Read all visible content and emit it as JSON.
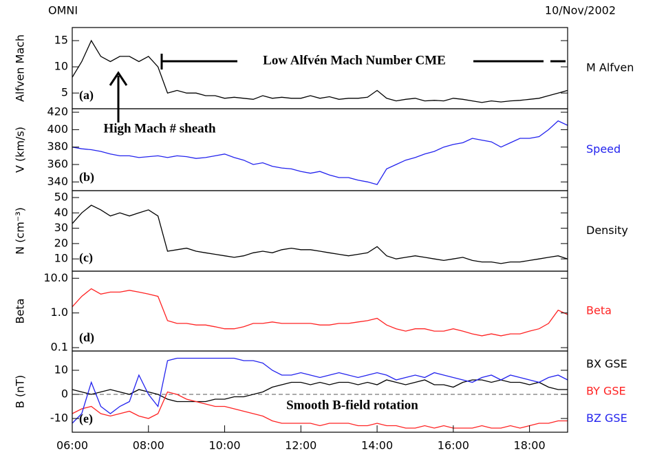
{
  "header": {
    "left": "OMNI",
    "right": "10/Nov/2002"
  },
  "chart_data": [
    {
      "type": "line",
      "panel_label": "(a)",
      "y_label": "Alfven Mach",
      "annotations": [
        "Low Alfvén Mach Number CME",
        "High Mach # sheath"
      ],
      "xlim": [
        6,
        19
      ],
      "ylim": [
        2,
        17.5
      ],
      "yticks": [
        5,
        10,
        15
      ],
      "x": [
        6,
        6.25,
        6.5,
        6.75,
        7,
        7.25,
        7.5,
        7.75,
        8,
        8.25,
        8.5,
        8.75,
        9,
        9.25,
        9.5,
        9.75,
        10,
        10.25,
        10.5,
        10.75,
        11,
        11.25,
        11.5,
        11.75,
        12,
        12.25,
        12.5,
        12.75,
        13,
        13.25,
        13.5,
        13.75,
        14,
        14.25,
        14.5,
        14.75,
        15,
        15.25,
        15.5,
        15.75,
        16,
        16.25,
        16.5,
        16.75,
        17,
        17.25,
        17.5,
        17.75,
        18,
        18.25,
        18.5,
        18.75,
        19
      ],
      "series": [
        {
          "name": "M Alfven",
          "color": "#000000",
          "values": [
            8,
            11,
            15,
            12,
            11,
            12,
            12,
            11,
            12,
            10,
            5,
            5.5,
            5,
            5,
            4.5,
            4.5,
            4,
            4.2,
            4,
            3.8,
            4.5,
            4,
            4.2,
            4,
            4,
            4.5,
            4,
            4.3,
            3.8,
            4,
            4,
            4.2,
            5.5,
            4,
            3.5,
            3.8,
            4,
            3.5,
            3.6,
            3.5,
            4,
            3.8,
            3.5,
            3.2,
            3.5,
            3.3,
            3.5,
            3.6,
            3.8,
            4,
            4.5,
            5,
            5.5
          ]
        }
      ]
    },
    {
      "type": "line",
      "panel_label": "(b)",
      "y_label": "V (km/s)",
      "xlim": [
        6,
        19
      ],
      "ylim": [
        330,
        424
      ],
      "yticks": [
        340,
        360,
        380,
        400,
        420
      ],
      "x": [
        6,
        6.25,
        6.5,
        6.75,
        7,
        7.25,
        7.5,
        7.75,
        8,
        8.25,
        8.5,
        8.75,
        9,
        9.25,
        9.5,
        9.75,
        10,
        10.25,
        10.5,
        10.75,
        11,
        11.25,
        11.5,
        11.75,
        12,
        12.25,
        12.5,
        12.75,
        13,
        13.25,
        13.5,
        13.75,
        14,
        14.25,
        14.5,
        14.75,
        15,
        15.25,
        15.5,
        15.75,
        16,
        16.25,
        16.5,
        16.75,
        17,
        17.25,
        17.5,
        17.75,
        18,
        18.25,
        18.5,
        18.75,
        19
      ],
      "series": [
        {
          "name": "Speed",
          "color": "#2222ee",
          "values": [
            380,
            378,
            377,
            375,
            372,
            370,
            370,
            368,
            369,
            370,
            368,
            370,
            369,
            367,
            368,
            370,
            372,
            368,
            365,
            360,
            362,
            358,
            356,
            355,
            352,
            350,
            352,
            348,
            345,
            345,
            342,
            340,
            337,
            355,
            360,
            365,
            368,
            372,
            375,
            380,
            383,
            385,
            390,
            388,
            386,
            380,
            385,
            390,
            390,
            392,
            400,
            410,
            405
          ]
        }
      ]
    },
    {
      "type": "line",
      "panel_label": "(c)",
      "y_label": "N (cm⁻³)",
      "xlim": [
        6,
        19
      ],
      "ylim": [
        2,
        54.5
      ],
      "yticks": [
        10,
        20,
        30,
        40,
        50
      ],
      "x": [
        6,
        6.25,
        6.5,
        6.75,
        7,
        7.25,
        7.5,
        7.75,
        8,
        8.25,
        8.5,
        8.75,
        9,
        9.25,
        9.5,
        9.75,
        10,
        10.25,
        10.5,
        10.75,
        11,
        11.25,
        11.5,
        11.75,
        12,
        12.25,
        12.5,
        12.75,
        13,
        13.25,
        13.5,
        13.75,
        14,
        14.25,
        14.5,
        14.75,
        15,
        15.25,
        15.5,
        15.75,
        16,
        16.25,
        16.5,
        16.75,
        17,
        17.25,
        17.5,
        17.75,
        18,
        18.25,
        18.5,
        18.75,
        19
      ],
      "series": [
        {
          "name": "Density",
          "color": "#000000",
          "values": [
            33,
            40,
            45,
            42,
            38,
            40,
            38,
            40,
            42,
            38,
            15,
            16,
            17,
            15,
            14,
            13,
            12,
            11,
            12,
            14,
            15,
            14,
            16,
            17,
            16,
            16,
            15,
            14,
            13,
            12,
            13,
            14,
            18,
            12,
            10,
            11,
            12,
            11,
            10,
            9,
            10,
            11,
            9,
            8,
            8,
            7,
            8,
            8,
            9,
            10,
            11,
            12,
            10
          ]
        }
      ]
    },
    {
      "type": "line",
      "panel_label": "(d)",
      "y_label": "Beta",
      "log_scale": true,
      "xlim": [
        6,
        19
      ],
      "ylim": [
        0.08,
        16
      ],
      "yticks": [
        {
          "value": 10,
          "label": "10.0"
        },
        {
          "value": 1,
          "label": "1.0"
        },
        0.1
      ],
      "x": [
        6,
        6.25,
        6.5,
        6.75,
        7,
        7.25,
        7.5,
        7.75,
        8,
        8.25,
        8.5,
        8.75,
        9,
        9.25,
        9.5,
        9.75,
        10,
        10.25,
        10.5,
        10.75,
        11,
        11.25,
        11.5,
        11.75,
        12,
        12.25,
        12.5,
        12.75,
        13,
        13.25,
        13.5,
        13.75,
        14,
        14.25,
        14.5,
        14.75,
        15,
        15.25,
        15.5,
        15.75,
        16,
        16.25,
        16.5,
        16.75,
        17,
        17.25,
        17.5,
        17.75,
        18,
        18.25,
        18.5,
        18.75,
        19
      ],
      "series": [
        {
          "name": "Beta",
          "color": "#ff2222",
          "values": [
            1.5,
            3,
            5,
            3.5,
            4,
            4,
            4.5,
            4,
            3.5,
            3,
            0.6,
            0.5,
            0.5,
            0.45,
            0.45,
            0.4,
            0.35,
            0.35,
            0.4,
            0.5,
            0.5,
            0.55,
            0.5,
            0.5,
            0.5,
            0.5,
            0.45,
            0.45,
            0.5,
            0.5,
            0.55,
            0.6,
            0.7,
            0.45,
            0.35,
            0.3,
            0.35,
            0.35,
            0.3,
            0.3,
            0.35,
            0.3,
            0.25,
            0.22,
            0.25,
            0.22,
            0.25,
            0.25,
            0.3,
            0.35,
            0.5,
            1.2,
            0.9
          ]
        }
      ]
    },
    {
      "type": "line",
      "panel_label": "(e)",
      "y_label": "B (nT)",
      "annotations": [
        "Smooth B-field rotation"
      ],
      "reference_line": 0,
      "xlim": [
        6,
        19
      ],
      "ylim": [
        -15.7,
        18
      ],
      "yticks": [
        -10,
        0,
        10
      ],
      "xticks": [
        {
          "value": 6,
          "label": "06:00"
        },
        {
          "value": 8,
          "label": "08:00"
        },
        {
          "value": 10,
          "label": "10:00"
        },
        {
          "value": 12,
          "label": "12:00"
        },
        {
          "value": 14,
          "label": "14:00"
        },
        {
          "value": 16,
          "label": "16:00"
        },
        {
          "value": 18,
          "label": "18:00"
        }
      ],
      "x": [
        6,
        6.25,
        6.5,
        6.75,
        7,
        7.25,
        7.5,
        7.75,
        8,
        8.25,
        8.5,
        8.75,
        9,
        9.25,
        9.5,
        9.75,
        10,
        10.25,
        10.5,
        10.75,
        11,
        11.25,
        11.5,
        11.75,
        12,
        12.25,
        12.5,
        12.75,
        13,
        13.25,
        13.5,
        13.75,
        14,
        14.25,
        14.5,
        14.75,
        15,
        15.25,
        15.5,
        15.75,
        16,
        16.25,
        16.5,
        16.75,
        17,
        17.25,
        17.5,
        17.75,
        18,
        18.25,
        18.5,
        18.75,
        19
      ],
      "series": [
        {
          "name": "BX GSE",
          "color": "#000000",
          "values": [
            2,
            1,
            0,
            1,
            2,
            1,
            0,
            2,
            1,
            0,
            -2,
            -3,
            -3,
            -3,
            -3,
            -2,
            -2,
            -1,
            -1,
            0,
            1,
            3,
            4,
            5,
            5,
            4,
            5,
            4,
            5,
            5,
            4,
            5,
            4,
            6,
            5,
            4,
            5,
            6,
            4,
            4,
            3,
            5,
            6,
            6,
            5,
            6,
            5,
            5,
            4,
            5,
            3,
            2,
            2
          ]
        },
        {
          "name": "BY GSE",
          "color": "#ff2222",
          "values": [
            -8,
            -6,
            -5,
            -8,
            -9,
            -8,
            -7,
            -9,
            -10,
            -8,
            1,
            0,
            -2,
            -3,
            -4,
            -5,
            -5,
            -6,
            -7,
            -8,
            -9,
            -11,
            -12,
            -12,
            -12,
            -12,
            -13,
            -12,
            -12,
            -12,
            -13,
            -13,
            -12,
            -13,
            -13,
            -14,
            -14,
            -13,
            -14,
            -13,
            -14,
            -14,
            -14,
            -13,
            -14,
            -14,
            -13,
            -14,
            -13,
            -12,
            -12,
            -11,
            -11
          ]
        },
        {
          "name": "BZ GSE",
          "color": "#2222ee",
          "values": [
            -12,
            -8,
            5,
            -5,
            -8,
            -5,
            -3,
            8,
            0,
            -5,
            14,
            15,
            15,
            15,
            15,
            15,
            15,
            15,
            14,
            14,
            13,
            10,
            8,
            8,
            9,
            8,
            7,
            8,
            9,
            8,
            7,
            8,
            9,
            8,
            6,
            7,
            8,
            7,
            9,
            8,
            7,
            6,
            5,
            7,
            8,
            6,
            8,
            7,
            6,
            5,
            7,
            8,
            6
          ]
        }
      ]
    }
  ]
}
